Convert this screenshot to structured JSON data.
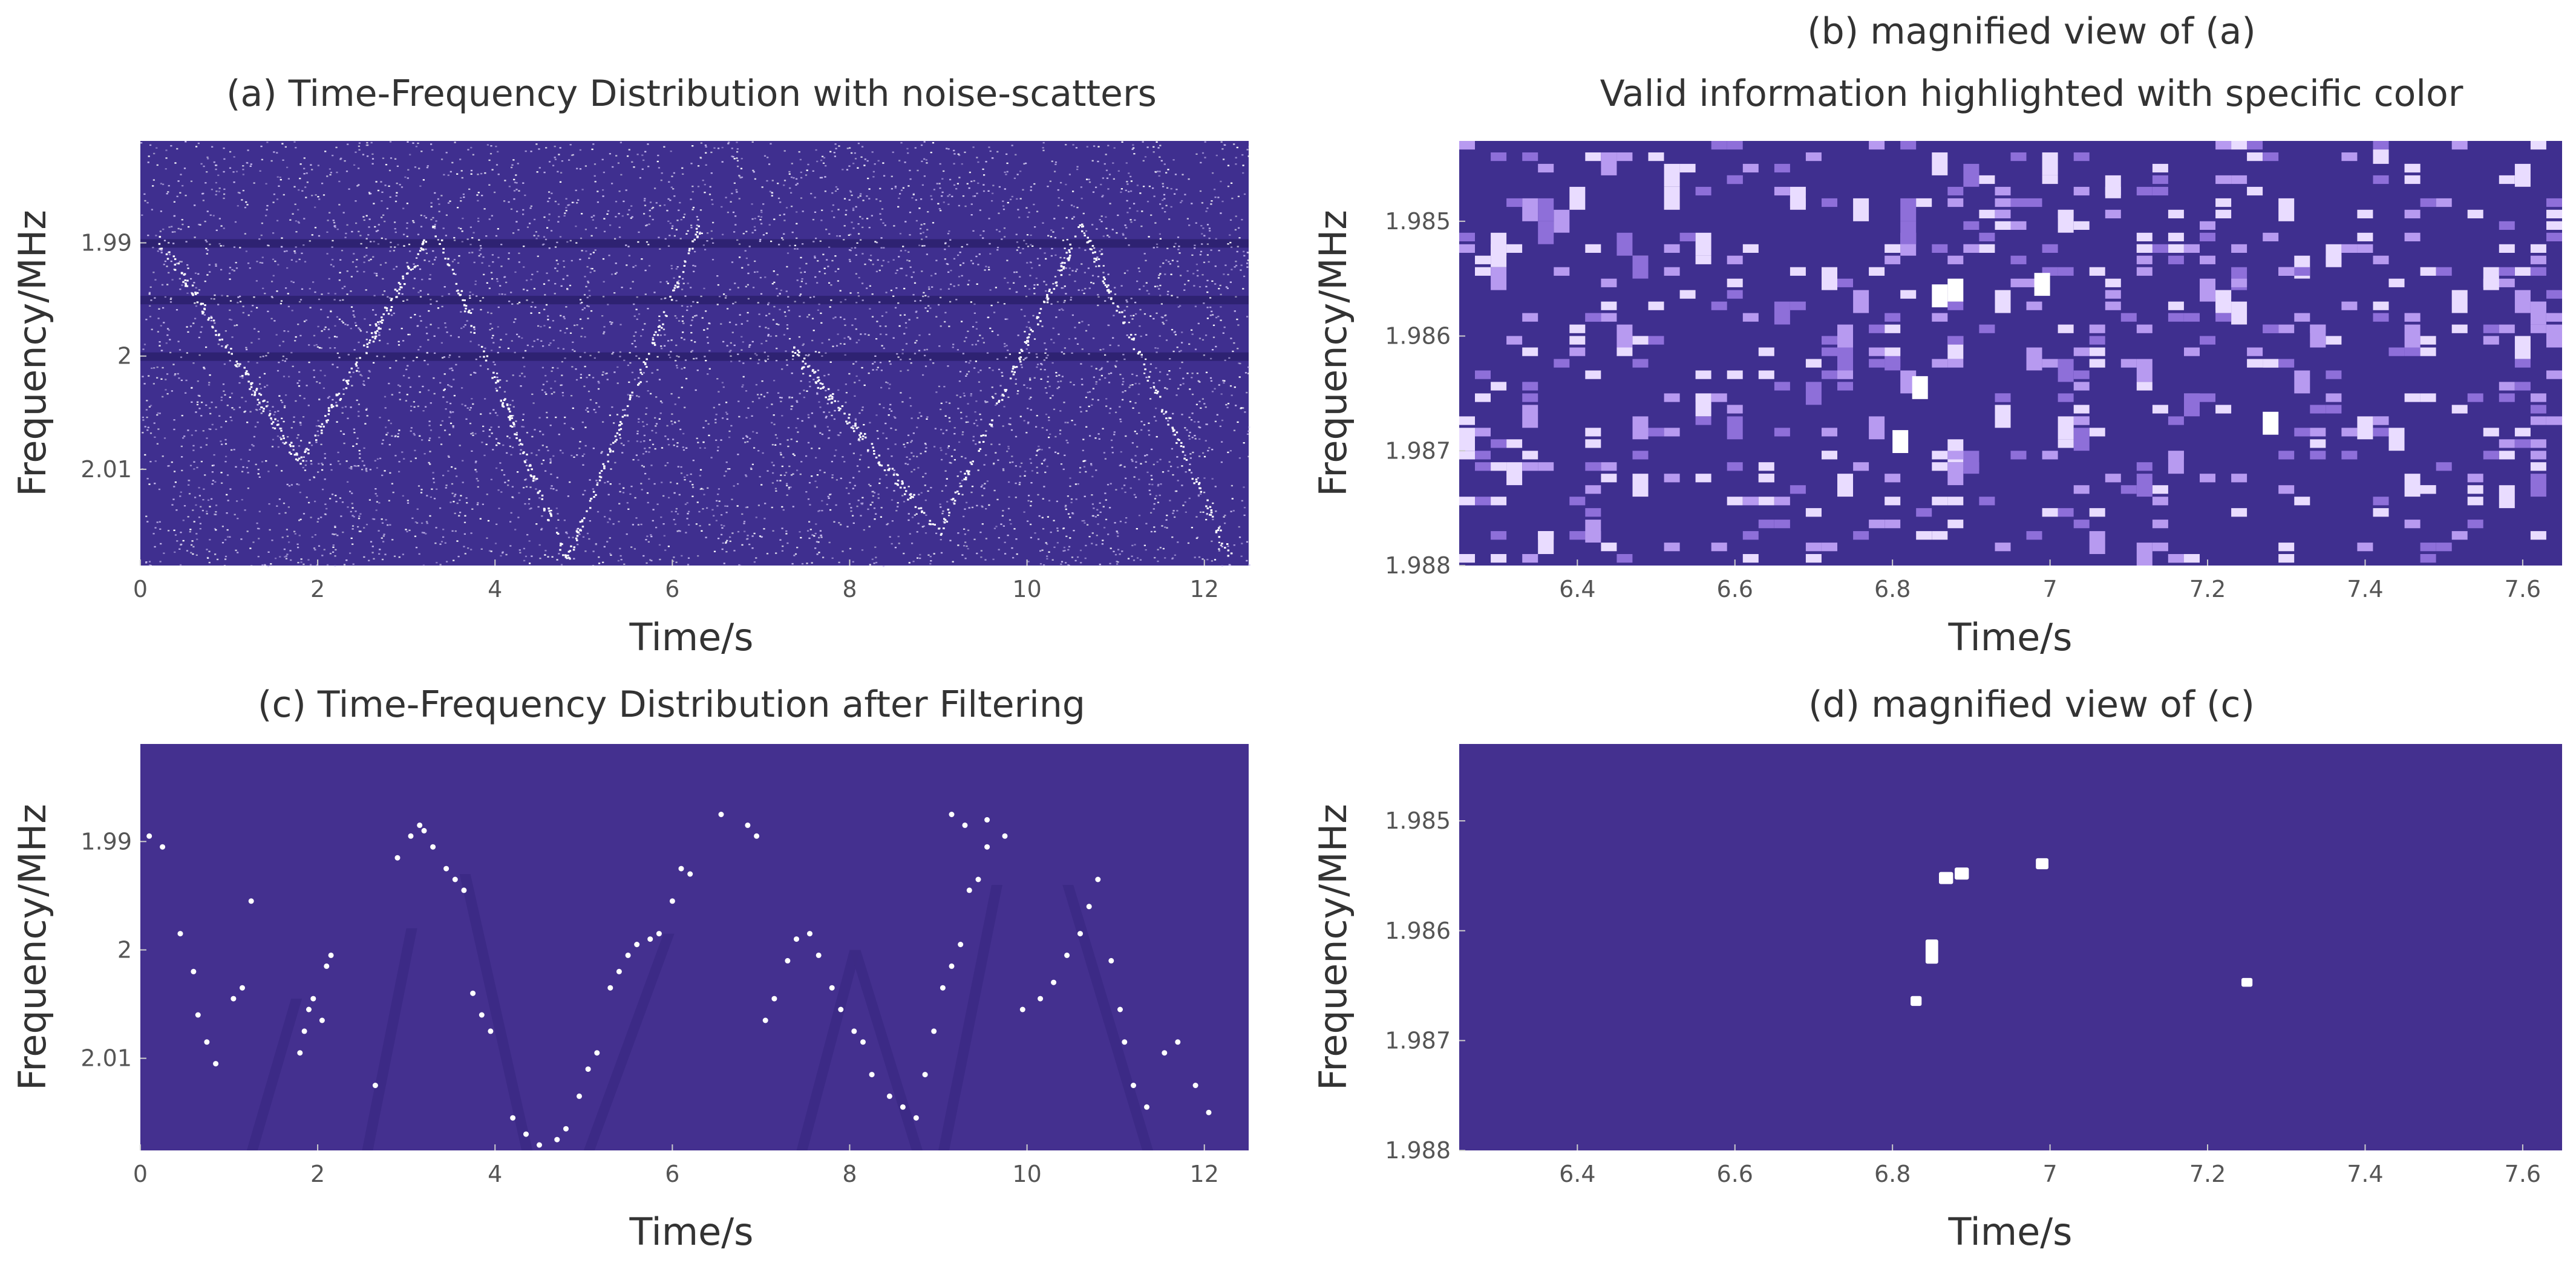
{
  "chart_data": [
    {
      "id": "a",
      "type": "heatmap",
      "title_lines": [
        "(a) Time-Frequency Distribution with noise-scatters"
      ],
      "xlabel": "Time/s",
      "ylabel": "Frequency/MHz",
      "xlim": [
        0,
        12.5
      ],
      "ylim": [
        1.981,
        2.0185
      ],
      "y_inverted": true,
      "xticks": [
        0,
        2,
        4,
        6,
        8,
        10,
        12
      ],
      "xtick_labels": [
        "0",
        "2",
        "4",
        "6",
        "8",
        "10",
        "12"
      ],
      "yticks": [
        1.99,
        2.0,
        2.01
      ],
      "ytick_labels": [
        "1.99",
        "2",
        "2.01"
      ],
      "background_color": "#3f2f8f",
      "point_color": "#ffffff",
      "description_of_marks": "dense random noise scatter plus faint V-shaped sweep traces",
      "noise_density": "high",
      "dark_bands_at": [
        1.99,
        1.995,
        2.0
      ]
    },
    {
      "id": "b",
      "type": "heatmap",
      "title_lines": [
        "(b) magnified view of (a)",
        "Valid information highlighted with specific color"
      ],
      "xlabel": "Time/s",
      "ylabel": "Frequency/MHz",
      "xlim": [
        6.25,
        7.65
      ],
      "ylim": [
        1.9843,
        1.988
      ],
      "y_inverted": true,
      "xticks": [
        6.4,
        6.6,
        6.8,
        7.0,
        7.2,
        7.4,
        7.6
      ],
      "xtick_labels": [
        "6.4",
        "6.6",
        "6.8",
        "7",
        "7.2",
        "7.4",
        "7.6"
      ],
      "yticks": [
        1.985,
        1.986,
        1.987,
        1.988
      ],
      "ytick_labels": [
        "1.985",
        "1.986",
        "1.987",
        "1.988"
      ],
      "background_color": "#3f2f8f",
      "cell_colors": [
        "#b79af0",
        "#8e6fd9",
        "#e9dcff"
      ],
      "highlight_color": "#ffffff",
      "highlighted_points": [
        {
          "t": 6.835,
          "f": 1.98645
        },
        {
          "t": 6.86,
          "f": 1.98565
        },
        {
          "t": 6.88,
          "f": 1.9856
        },
        {
          "t": 6.99,
          "f": 1.98555
        },
        {
          "t": 7.28,
          "f": 1.98676
        },
        {
          "t": 6.81,
          "f": 1.98692
        }
      ]
    },
    {
      "id": "c",
      "type": "heatmap",
      "title_lines": [
        "(c) Time-Frequency Distribution after Filtering"
      ],
      "xlabel": "Time/s",
      "ylabel": "Frequency/MHz",
      "xlim": [
        0,
        12.5
      ],
      "ylim": [
        1.981,
        2.0185
      ],
      "y_inverted": true,
      "xticks": [
        0,
        2,
        4,
        6,
        8,
        10,
        12
      ],
      "xtick_labels": [
        "0",
        "2",
        "4",
        "6",
        "8",
        "10",
        "12"
      ],
      "yticks": [
        1.99,
        2.0,
        2.01
      ],
      "ytick_labels": [
        "1.99",
        "2",
        "2.01"
      ],
      "background_color": "#44308f",
      "point_color": "#ffffff",
      "points": [
        [
          0.1,
          1.9895
        ],
        [
          0.25,
          1.9905
        ],
        [
          0.45,
          1.9985
        ],
        [
          0.6,
          2.002
        ],
        [
          0.65,
          2.006
        ],
        [
          0.75,
          2.0085
        ],
        [
          0.85,
          2.0105
        ],
        [
          1.05,
          2.0045
        ],
        [
          1.15,
          2.0035
        ],
        [
          1.25,
          1.9955
        ],
        [
          1.8,
          2.0095
        ],
        [
          1.85,
          2.0075
        ],
        [
          1.9,
          2.0055
        ],
        [
          1.95,
          2.0045
        ],
        [
          2.05,
          2.0065
        ],
        [
          2.1,
          2.0015
        ],
        [
          2.15,
          2.0005
        ],
        [
          2.65,
          2.0125
        ],
        [
          2.9,
          1.9915
        ],
        [
          3.05,
          1.9895
        ],
        [
          3.15,
          1.9885
        ],
        [
          3.2,
          1.989
        ],
        [
          3.3,
          1.9905
        ],
        [
          3.45,
          1.9925
        ],
        [
          3.55,
          1.9935
        ],
        [
          3.65,
          1.9945
        ],
        [
          3.75,
          2.004
        ],
        [
          3.85,
          2.006
        ],
        [
          3.95,
          2.0075
        ],
        [
          4.2,
          2.0155
        ],
        [
          4.35,
          2.017
        ],
        [
          4.5,
          2.018
        ],
        [
          4.7,
          2.0175
        ],
        [
          4.8,
          2.0165
        ],
        [
          4.95,
          2.0135
        ],
        [
          5.05,
          2.011
        ],
        [
          5.15,
          2.0095
        ],
        [
          5.3,
          2.0035
        ],
        [
          5.4,
          2.002
        ],
        [
          5.5,
          2.0005
        ],
        [
          5.6,
          1.9995
        ],
        [
          5.75,
          1.999
        ],
        [
          5.85,
          1.9985
        ],
        [
          6.0,
          1.9955
        ],
        [
          6.1,
          1.9925
        ],
        [
          6.2,
          1.993
        ],
        [
          6.55,
          1.9875
        ],
        [
          6.85,
          1.9885
        ],
        [
          6.95,
          1.9895
        ],
        [
          7.05,
          2.0065
        ],
        [
          7.15,
          2.0045
        ],
        [
          7.3,
          2.001
        ],
        [
          7.4,
          1.999
        ],
        [
          7.55,
          1.9985
        ],
        [
          7.65,
          2.0005
        ],
        [
          7.8,
          2.0035
        ],
        [
          7.9,
          2.0055
        ],
        [
          8.05,
          2.0075
        ],
        [
          8.15,
          2.0085
        ],
        [
          8.25,
          2.0115
        ],
        [
          8.45,
          2.0135
        ],
        [
          8.6,
          2.0145
        ],
        [
          8.75,
          2.0155
        ],
        [
          8.85,
          2.0115
        ],
        [
          8.95,
          2.0075
        ],
        [
          9.05,
          2.0035
        ],
        [
          9.15,
          2.0015
        ],
        [
          9.25,
          1.9995
        ],
        [
          9.35,
          1.9945
        ],
        [
          9.45,
          1.9935
        ],
        [
          9.55,
          1.9905
        ],
        [
          9.15,
          1.9875
        ],
        [
          9.3,
          1.9885
        ],
        [
          9.55,
          1.988
        ],
        [
          9.75,
          1.9895
        ],
        [
          9.95,
          2.0055
        ],
        [
          10.15,
          2.0045
        ],
        [
          10.3,
          2.003
        ],
        [
          10.45,
          2.0005
        ],
        [
          10.6,
          1.9985
        ],
        [
          10.7,
          1.996
        ],
        [
          10.8,
          1.9935
        ],
        [
          10.95,
          2.001
        ],
        [
          11.05,
          2.0055
        ],
        [
          11.1,
          2.0085
        ],
        [
          11.2,
          2.0125
        ],
        [
          11.35,
          2.0145
        ],
        [
          11.55,
          2.0095
        ],
        [
          11.7,
          2.0085
        ],
        [
          11.9,
          2.0125
        ],
        [
          12.05,
          2.015
        ]
      ]
    },
    {
      "id": "d",
      "type": "heatmap",
      "title_lines": [
        "(d) magnified view of (c)"
      ],
      "xlabel": "Time/s",
      "ylabel": "Frequency/MHz",
      "xlim": [
        6.25,
        7.65
      ],
      "ylim": [
        1.9843,
        1.988
      ],
      "y_inverted": true,
      "xticks": [
        6.4,
        6.6,
        6.8,
        7.0,
        7.2,
        7.4,
        7.6
      ],
      "xtick_labels": [
        "6.4",
        "6.6",
        "6.8",
        "7",
        "7.2",
        "7.4",
        "7.6"
      ],
      "yticks": [
        1.985,
        1.986,
        1.987,
        1.988
      ],
      "ytick_labels": [
        "1.985",
        "1.986",
        "1.987",
        "1.988"
      ],
      "background_color": "#44308f",
      "point_color": "#ffffff",
      "cells": [
        {
          "t": 6.83,
          "f": 1.98664,
          "dt": 0.014,
          "df": 9e-05
        },
        {
          "t": 6.85,
          "f": 1.98619,
          "dt": 0.016,
          "df": 0.00022
        },
        {
          "t": 6.868,
          "f": 1.98552,
          "dt": 0.018,
          "df": 0.00011
        },
        {
          "t": 6.888,
          "f": 1.98548,
          "dt": 0.018,
          "df": 0.00011
        },
        {
          "t": 6.99,
          "f": 1.98539,
          "dt": 0.016,
          "df": 0.0001
        },
        {
          "t": 7.25,
          "f": 1.98647,
          "dt": 0.014,
          "df": 8e-05
        }
      ]
    }
  ]
}
